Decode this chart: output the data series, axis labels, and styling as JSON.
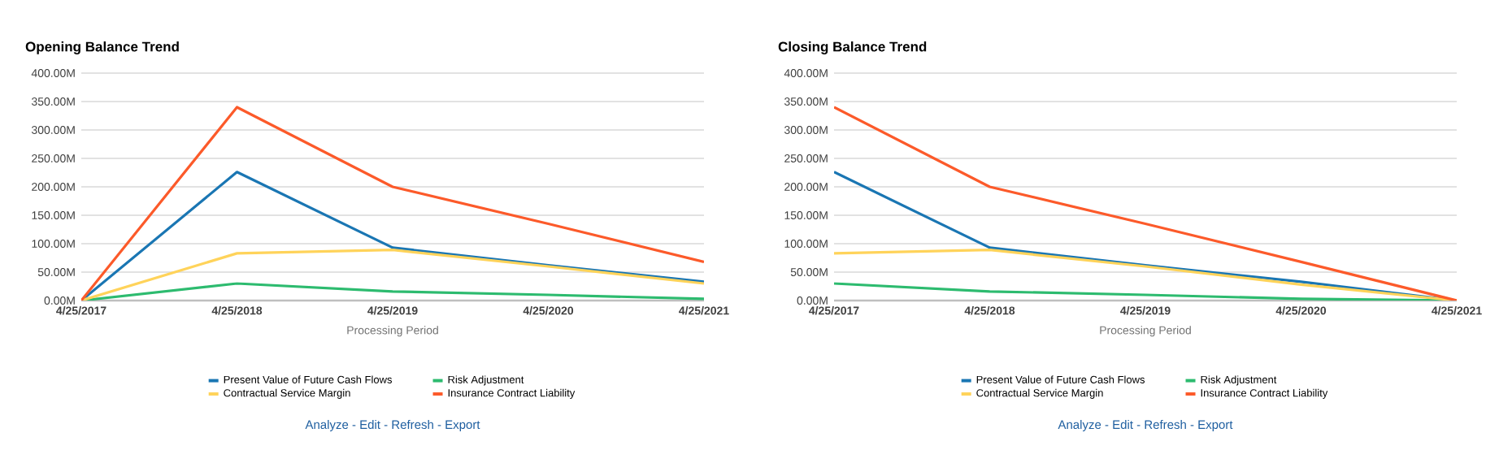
{
  "chart_data": [
    {
      "type": "line",
      "title": "Opening Balance Trend",
      "xlabel": "Processing Period",
      "categories": [
        "4/25/2017",
        "4/25/2018",
        "4/25/2019",
        "4/25/2020",
        "4/25/2021"
      ],
      "series": [
        {
          "name": "Present Value of Future Cash Flows",
          "color": "#1a76b3",
          "values": [
            0,
            226,
            93,
            62,
            33
          ]
        },
        {
          "name": "Risk Adjustment",
          "color": "#2dbb6f",
          "values": [
            0,
            30,
            16,
            10,
            3
          ]
        },
        {
          "name": "Contractual Service Margin",
          "color": "#ffd35a",
          "values": [
            0,
            83,
            89,
            60,
            30
          ]
        },
        {
          "name": "Insurance Contract Liability",
          "color": "#fc5a2a",
          "values": [
            0,
            340,
            200,
            135,
            68
          ]
        }
      ],
      "ylim": [
        0,
        400
      ],
      "yticks": [
        {
          "value": 0,
          "label": "0.00M"
        },
        {
          "value": 50,
          "label": "50.00M"
        },
        {
          "value": 100,
          "label": "100.00M"
        },
        {
          "value": 150,
          "label": "150.00M"
        },
        {
          "value": 200,
          "label": "200.00M"
        },
        {
          "value": 250,
          "label": "250.00M"
        },
        {
          "value": 300,
          "label": "300.00M"
        },
        {
          "value": 350,
          "label": "350.00M"
        },
        {
          "value": 400,
          "label": "400.00M"
        }
      ],
      "grid": "y",
      "legend": "bottom",
      "line_style": "solid",
      "annotations": [
        "Analyze - Edit - Refresh - Export"
      ]
    },
    {
      "type": "line",
      "title": "Closing Balance Trend",
      "xlabel": "Processing Period",
      "categories": [
        "4/25/2017",
        "4/25/2018",
        "4/25/2019",
        "4/25/2020",
        "4/25/2021"
      ],
      "series": [
        {
          "name": "Present Value of Future Cash Flows",
          "color": "#1a76b3",
          "values": [
            226,
            93,
            62,
            33,
            0
          ]
        },
        {
          "name": "Risk Adjustment",
          "color": "#2dbb6f",
          "values": [
            30,
            16,
            10,
            3,
            0
          ]
        },
        {
          "name": "Contractual Service Margin",
          "color": "#ffd35a",
          "values": [
            83,
            89,
            60,
            28,
            0
          ]
        },
        {
          "name": "Insurance Contract Liability",
          "color": "#fc5a2a",
          "values": [
            340,
            200,
            135,
            68,
            0
          ]
        }
      ],
      "ylim": [
        0,
        400
      ],
      "yticks": [
        {
          "value": 0,
          "label": "0.00M"
        },
        {
          "value": 50,
          "label": "50.00M"
        },
        {
          "value": 100,
          "label": "100.00M"
        },
        {
          "value": 150,
          "label": "150.00M"
        },
        {
          "value": 200,
          "label": "200.00M"
        },
        {
          "value": 250,
          "label": "250.00M"
        },
        {
          "value": 300,
          "label": "300.00M"
        },
        {
          "value": 350,
          "label": "350.00M"
        },
        {
          "value": 400,
          "label": "400.00M"
        }
      ],
      "grid": "y",
      "legend": "bottom",
      "line_style": "solid",
      "annotations": [
        "Analyze - Edit - Refresh - Export"
      ]
    }
  ]
}
